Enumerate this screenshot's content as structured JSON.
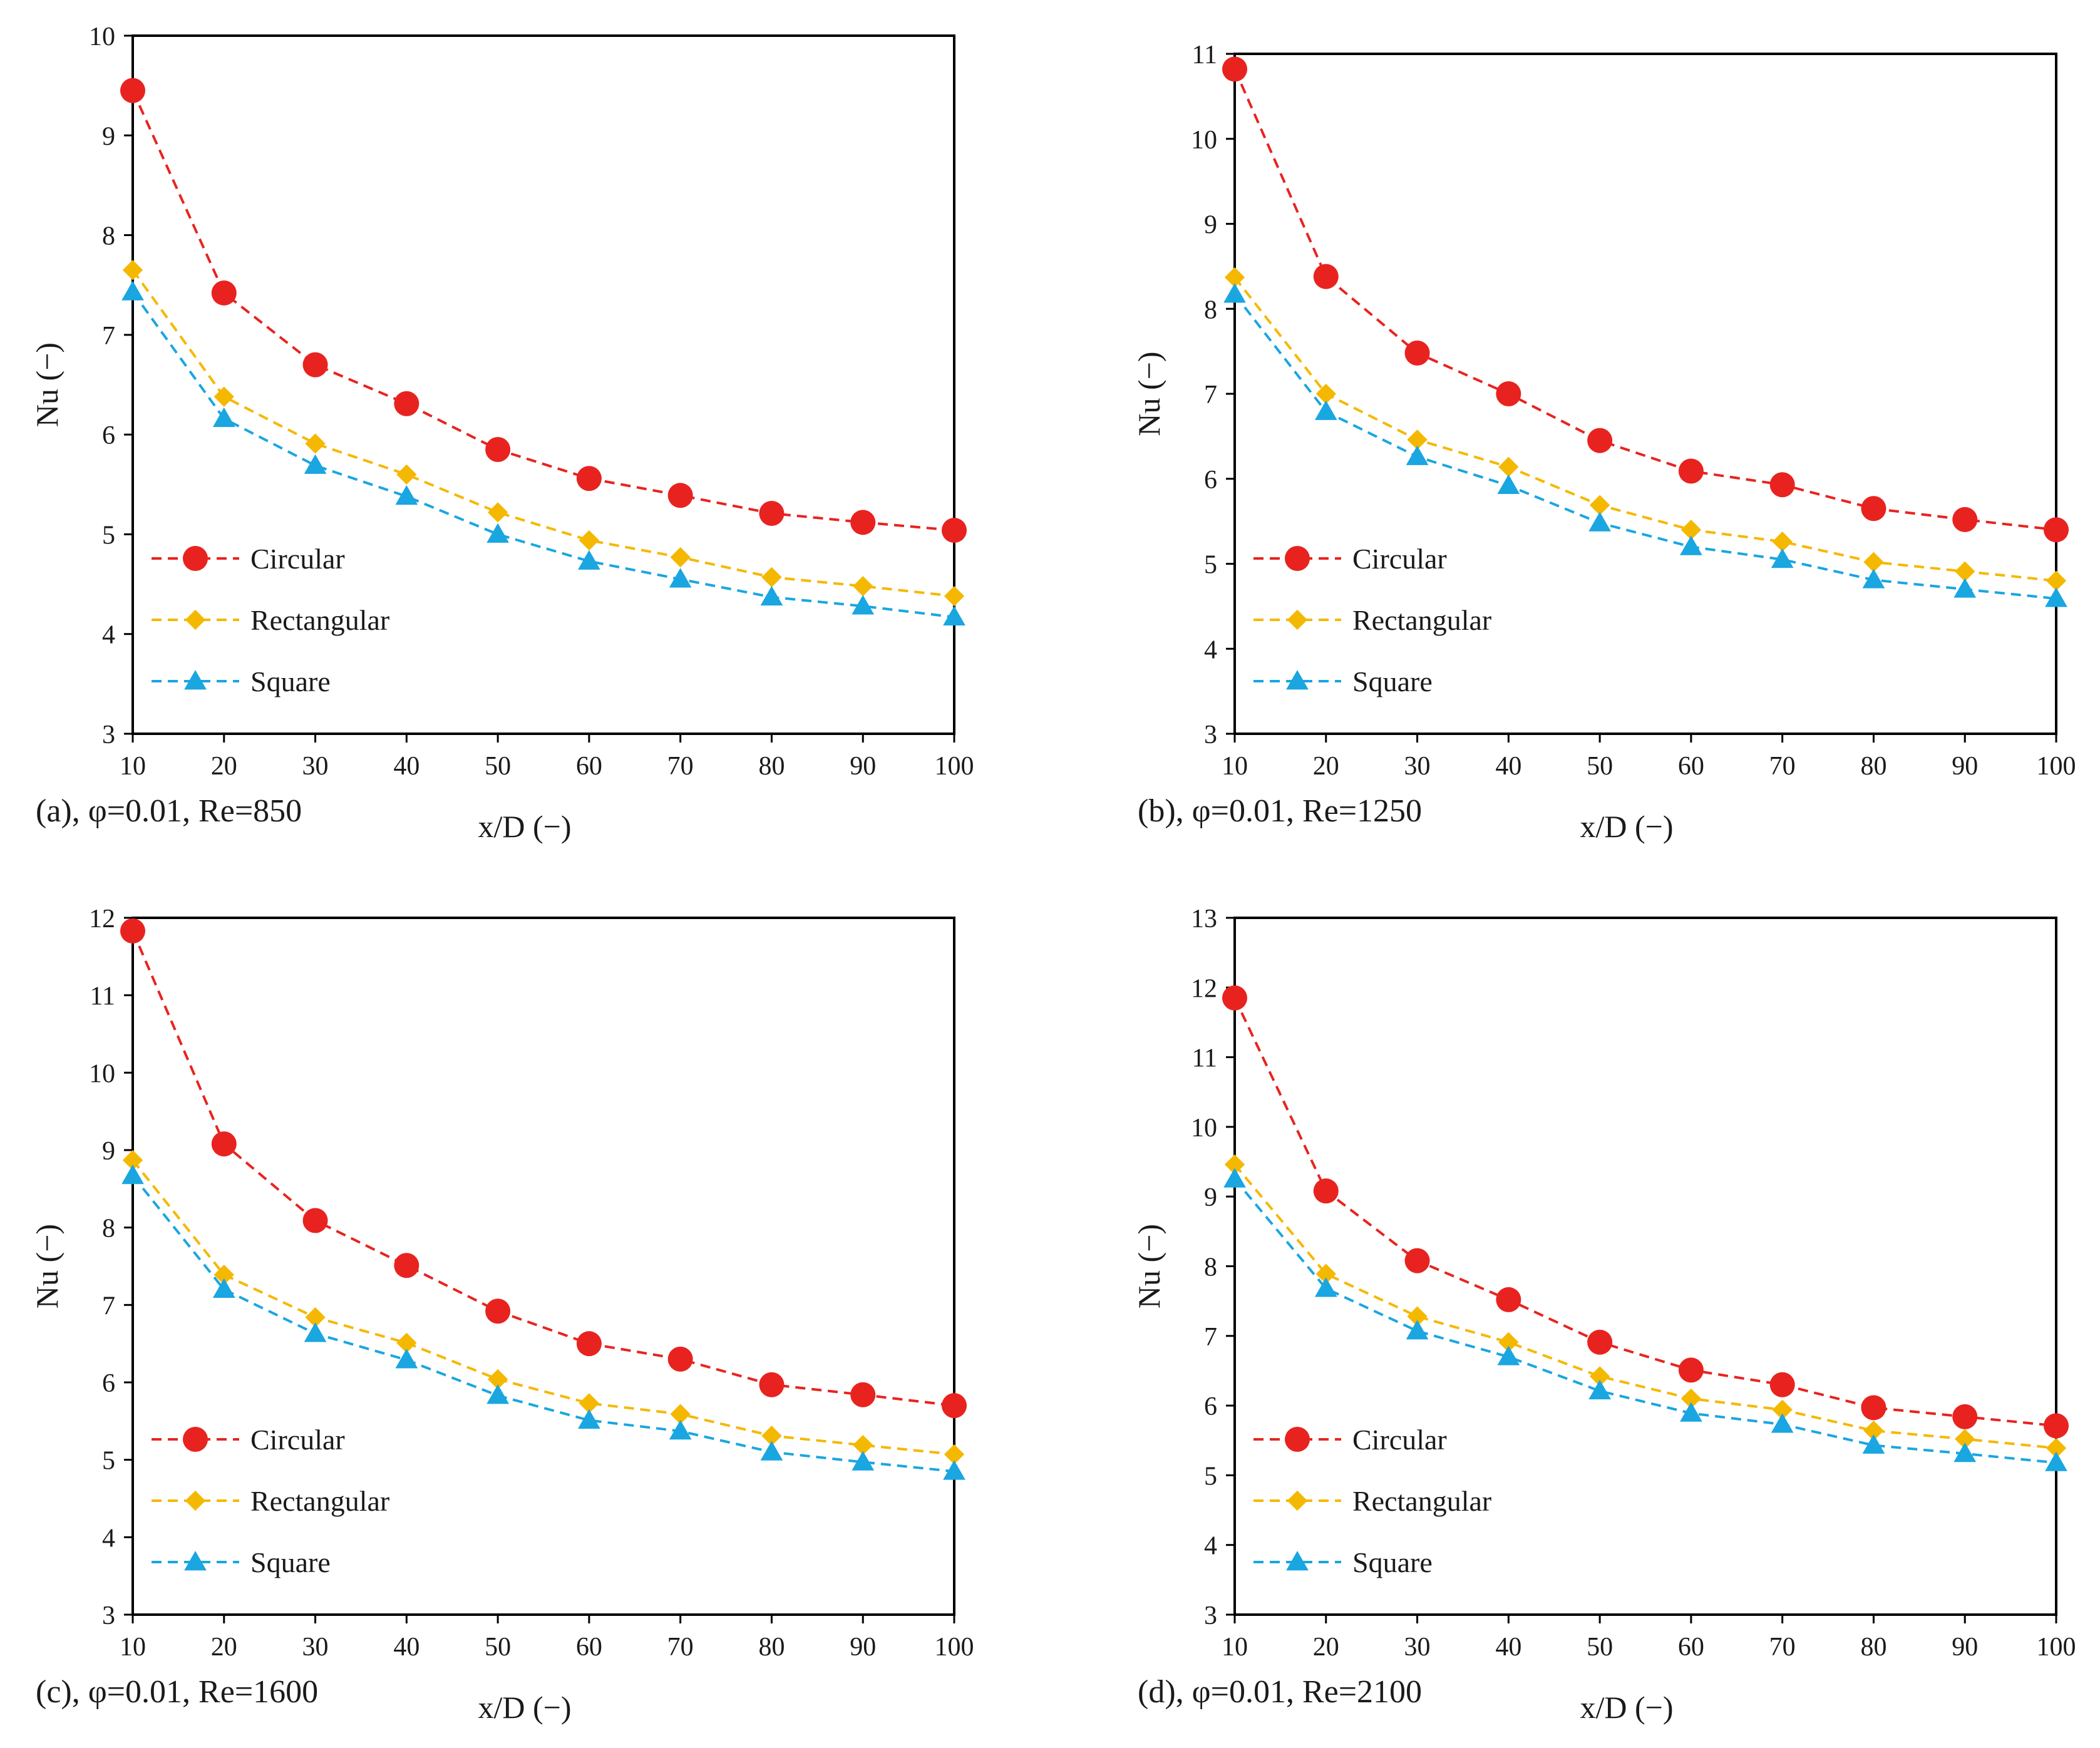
{
  "chart_data": [
    {
      "type": "line",
      "caption": "(a), φ=0.01, Re=850",
      "xlabel": "x/D (−)",
      "ylabel": "Nu (−)",
      "xlim": [
        10,
        100
      ],
      "ylim": [
        3,
        10
      ],
      "xticks": [
        10,
        20,
        30,
        40,
        50,
        60,
        70,
        80,
        90,
        100
      ],
      "yticks": [
        3,
        4,
        5,
        6,
        7,
        8,
        9,
        10
      ],
      "x": [
        10,
        20,
        30,
        40,
        50,
        60,
        70,
        80,
        90,
        100
      ],
      "legend_position": "bottom-left",
      "series": [
        {
          "name": "Circular",
          "color": "#e8231f",
          "marker": "circle",
          "values": [
            9.45,
            7.42,
            6.7,
            6.31,
            5.85,
            5.56,
            5.39,
            5.21,
            5.12,
            5.04
          ]
        },
        {
          "name": "Rectangular",
          "color": "#f5b800",
          "marker": "diamond",
          "values": [
            7.65,
            6.38,
            5.91,
            5.6,
            5.22,
            4.94,
            4.77,
            4.57,
            4.48,
            4.38
          ]
        },
        {
          "name": "Square",
          "color": "#1aa6e0",
          "marker": "triangle",
          "values": [
            7.43,
            6.16,
            5.69,
            5.38,
            5.0,
            4.73,
            4.55,
            4.37,
            4.28,
            4.17
          ]
        }
      ]
    },
    {
      "type": "line",
      "caption": "(b), φ=0.01, Re=1250",
      "xlabel": "x/D (−)",
      "ylabel": "Nu (−)",
      "xlim": [
        10,
        100
      ],
      "ylim": [
        3,
        11
      ],
      "xticks": [
        10,
        20,
        30,
        40,
        50,
        60,
        70,
        80,
        90,
        100
      ],
      "yticks": [
        3,
        4,
        5,
        6,
        7,
        8,
        9,
        10,
        11
      ],
      "x": [
        10,
        20,
        30,
        40,
        50,
        60,
        70,
        80,
        90,
        100
      ],
      "legend_position": "bottom-left",
      "series": [
        {
          "name": "Circular",
          "color": "#e8231f",
          "marker": "circle",
          "values": [
            10.82,
            8.38,
            7.48,
            7.0,
            6.45,
            6.09,
            5.93,
            5.65,
            5.52,
            5.4
          ]
        },
        {
          "name": "Rectangular",
          "color": "#f5b800",
          "marker": "diamond",
          "values": [
            8.37,
            7.0,
            6.46,
            6.14,
            5.69,
            5.4,
            5.26,
            5.02,
            4.91,
            4.8
          ]
        },
        {
          "name": "Square",
          "color": "#1aa6e0",
          "marker": "triangle",
          "values": [
            8.17,
            6.79,
            6.26,
            5.92,
            5.48,
            5.2,
            5.05,
            4.81,
            4.7,
            4.59
          ]
        }
      ]
    },
    {
      "type": "line",
      "caption": "(c), φ=0.01, Re=1600",
      "xlabel": "x/D (−)",
      "ylabel": "Nu (−)",
      "xlim": [
        10,
        100
      ],
      "ylim": [
        3,
        12
      ],
      "xticks": [
        10,
        20,
        30,
        40,
        50,
        60,
        70,
        80,
        90,
        100
      ],
      "yticks": [
        3,
        4,
        5,
        6,
        7,
        8,
        9,
        10,
        11,
        12
      ],
      "x": [
        10,
        20,
        30,
        40,
        50,
        60,
        70,
        80,
        90,
        100
      ],
      "legend_position": "bottom-left",
      "series": [
        {
          "name": "Circular",
          "color": "#e8231f",
          "marker": "circle",
          "values": [
            11.83,
            9.08,
            8.09,
            7.51,
            6.92,
            6.5,
            6.3,
            5.97,
            5.84,
            5.7
          ]
        },
        {
          "name": "Rectangular",
          "color": "#f5b800",
          "marker": "diamond",
          "values": [
            8.87,
            7.39,
            6.84,
            6.51,
            6.04,
            5.73,
            5.59,
            5.31,
            5.19,
            5.07
          ]
        },
        {
          "name": "Square",
          "color": "#1aa6e0",
          "marker": "triangle",
          "values": [
            8.67,
            7.2,
            6.63,
            6.29,
            5.83,
            5.51,
            5.37,
            5.1,
            4.97,
            4.85
          ]
        }
      ]
    },
    {
      "type": "line",
      "caption": "(d), φ=0.01, Re=2100",
      "xlabel": "x/D (−)",
      "ylabel": "Nu (−)",
      "xlim": [
        10,
        100
      ],
      "ylim": [
        3,
        13
      ],
      "xticks": [
        10,
        20,
        30,
        40,
        50,
        60,
        70,
        80,
        90,
        100
      ],
      "yticks": [
        3,
        4,
        5,
        6,
        7,
        8,
        9,
        10,
        11,
        12,
        13
      ],
      "x": [
        10,
        20,
        30,
        40,
        50,
        60,
        70,
        80,
        90,
        100
      ],
      "legend_position": "bottom-left",
      "series": [
        {
          "name": "Circular",
          "color": "#e8231f",
          "marker": "circle",
          "values": [
            11.85,
            9.08,
            8.08,
            7.52,
            6.91,
            6.51,
            6.3,
            5.97,
            5.84,
            5.71
          ]
        },
        {
          "name": "Rectangular",
          "color": "#f5b800",
          "marker": "diamond",
          "values": [
            9.46,
            7.89,
            7.28,
            6.91,
            6.42,
            6.1,
            5.94,
            5.64,
            5.52,
            5.39
          ]
        },
        {
          "name": "Square",
          "color": "#1aa6e0",
          "marker": "triangle",
          "values": [
            9.25,
            7.68,
            7.07,
            6.7,
            6.21,
            5.89,
            5.73,
            5.43,
            5.31,
            5.18
          ]
        }
      ]
    }
  ]
}
